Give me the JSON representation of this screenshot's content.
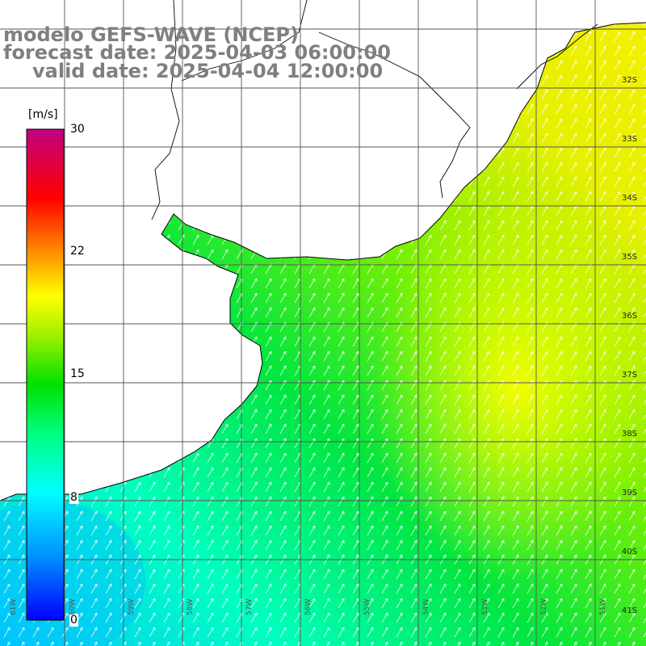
{
  "title": {
    "line1": "modelo GEFS-WAVE (NCEP)",
    "line2": "forecast date: 2025-04-03 06:00:00",
    "line3": "valid date: 2025-04-04 12:00:00"
  },
  "colorbar": {
    "unit": "[m/s]",
    "ticks": [
      "30",
      "22",
      "15",
      "8",
      "0"
    ],
    "colors": [
      "#0000ff",
      "#00a0ff",
      "#00ffff",
      "#00ff80",
      "#00e000",
      "#80ff00",
      "#ffff00",
      "#ff8000",
      "#ff0000",
      "#e00060",
      "#c00080"
    ]
  },
  "map": {
    "variable": "wind speed",
    "arrow_direction": "from south-west",
    "lat_labels": [
      "32S",
      "33S",
      "34S",
      "35S",
      "36S",
      "37S",
      "38S",
      "39S",
      "40S",
      "41S"
    ],
    "lon_labels": [
      "61W",
      "60W",
      "59W",
      "58W",
      "57W",
      "56W",
      "55W",
      "54W",
      "53W",
      "52W",
      "51W"
    ],
    "colors": {
      "land": "#ffffff",
      "coast": "#000000",
      "grid": "#555555"
    }
  }
}
